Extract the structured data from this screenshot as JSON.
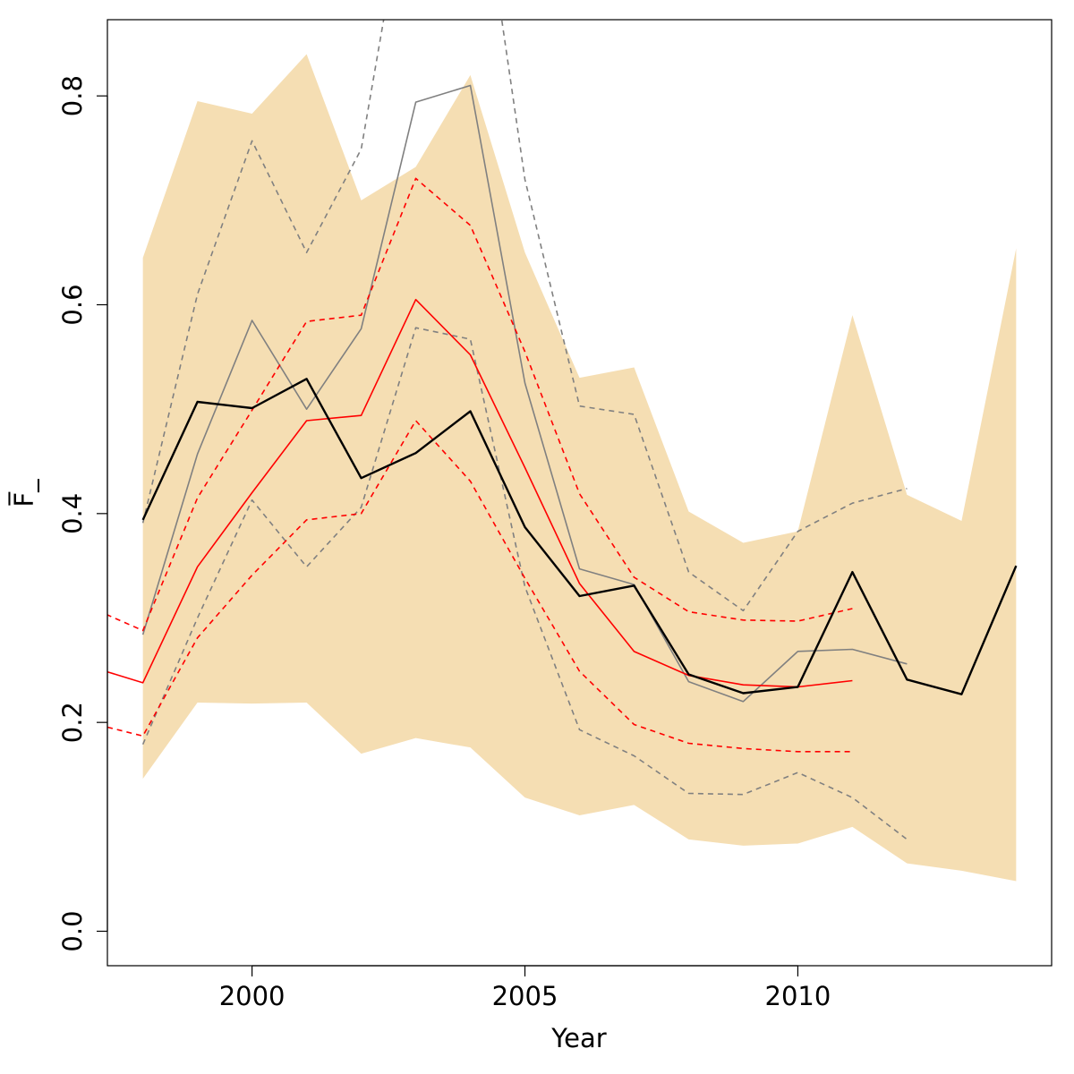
{
  "chart_data": {
    "type": "line",
    "xlabel": "Year",
    "ylabel": "F̅_",
    "xlim": [
      1997.35,
      2014.65
    ],
    "ylim": [
      -0.033,
      0.873
    ],
    "xticks": [
      2000,
      2005,
      2010
    ],
    "yticks": [
      0.0,
      0.2,
      0.4,
      0.6,
      0.8
    ],
    "ytick_labels": [
      "0.0",
      "0.2",
      "0.4",
      "0.6",
      "0.8"
    ],
    "grid": false,
    "colors": {
      "band": "#f5deb3",
      "black": "#000000",
      "grey": "#808080",
      "red": "#ff0000"
    },
    "band": {
      "x": [
        1998,
        1999,
        2000,
        2001,
        2002,
        2003,
        2004,
        2005,
        2006,
        2007,
        2008,
        2009,
        2010,
        2011,
        2012,
        2013,
        2014
      ],
      "upper": [
        0.645,
        0.795,
        0.783,
        0.84,
        0.7,
        0.732,
        0.82,
        0.65,
        0.53,
        0.54,
        0.402,
        0.372,
        0.383,
        0.59,
        0.418,
        0.393,
        0.654
      ],
      "lower": [
        0.146,
        0.219,
        0.218,
        0.219,
        0.17,
        0.185,
        0.176,
        0.128,
        0.111,
        0.121,
        0.088,
        0.082,
        0.084,
        0.1,
        0.065,
        0.058,
        0.048
      ]
    },
    "series": [
      {
        "color": "#000000",
        "dash": "none",
        "width": 2.4,
        "x": [
          1998,
          1999,
          2000,
          2001,
          2002,
          2003,
          2004,
          2005,
          2006,
          2007,
          2008,
          2009,
          2010,
          2011,
          2012,
          2013,
          2014
        ],
        "y": [
          0.394,
          0.507,
          0.501,
          0.529,
          0.434,
          0.458,
          0.498,
          0.387,
          0.321,
          0.331,
          0.246,
          0.228,
          0.234,
          0.344,
          0.241,
          0.227,
          0.35
        ]
      },
      {
        "color": "#808080",
        "dash": "none",
        "width": 1.6,
        "x": [
          1998,
          1999,
          2000,
          2001,
          2002,
          2003,
          2004,
          2005,
          2006,
          2007,
          2008,
          2009,
          2010,
          2011,
          2012
        ],
        "y": [
          0.284,
          0.457,
          0.585,
          0.5,
          0.577,
          0.794,
          0.81,
          0.525,
          0.347,
          0.332,
          0.239,
          0.22,
          0.268,
          0.27,
          0.256
        ]
      },
      {
        "color": "#808080",
        "dash": "6,5",
        "width": 1.6,
        "x": [
          1998,
          1999,
          2000,
          2001,
          2002,
          2003,
          2004,
          2005,
          2006,
          2007,
          2008,
          2009,
          2010,
          2011,
          2012
        ],
        "y": [
          0.391,
          0.61,
          0.757,
          0.65,
          0.749,
          1.05,
          1.08,
          0.72,
          0.503,
          0.495,
          0.344,
          0.307,
          0.383,
          0.41,
          0.424
        ]
      },
      {
        "color": "#808080",
        "dash": "6,5",
        "width": 1.6,
        "x": [
          1998,
          1999,
          2000,
          2001,
          2002,
          2003,
          2004,
          2005,
          2006,
          2007,
          2008,
          2009,
          2010,
          2011,
          2012
        ],
        "y": [
          0.179,
          0.3,
          0.413,
          0.349,
          0.406,
          0.578,
          0.567,
          0.33,
          0.193,
          0.168,
          0.132,
          0.131,
          0.152,
          0.128,
          0.088
        ]
      },
      {
        "color": "#ff0000",
        "dash": "none",
        "width": 1.6,
        "x": [
          1997,
          1998,
          1999,
          2000,
          2001,
          2002,
          2003,
          2004,
          2005,
          2006,
          2007,
          2008,
          2009,
          2010,
          2011
        ],
        "y": [
          0.254,
          0.238,
          0.349,
          0.42,
          0.489,
          0.494,
          0.605,
          0.552,
          0.444,
          0.333,
          0.268,
          0.245,
          0.236,
          0.234,
          0.24
        ]
      },
      {
        "color": "#ff0000",
        "dash": "6,5",
        "width": 1.6,
        "x": [
          1997,
          1998,
          1999,
          2000,
          2001,
          2002,
          2003,
          2004,
          2005,
          2006,
          2007,
          2008,
          2009,
          2010,
          2011
        ],
        "y": [
          0.311,
          0.288,
          0.415,
          0.499,
          0.584,
          0.59,
          0.721,
          0.676,
          0.555,
          0.419,
          0.339,
          0.306,
          0.298,
          0.297,
          0.309
        ]
      },
      {
        "color": "#ff0000",
        "dash": "6,5",
        "width": 1.6,
        "x": [
          1997,
          1998,
          1999,
          2000,
          2001,
          2002,
          2003,
          2004,
          2005,
          2006,
          2007,
          2008,
          2009,
          2010,
          2011
        ],
        "y": [
          0.2,
          0.187,
          0.281,
          0.341,
          0.394,
          0.4,
          0.489,
          0.431,
          0.338,
          0.249,
          0.198,
          0.18,
          0.175,
          0.172,
          0.172
        ]
      }
    ]
  }
}
